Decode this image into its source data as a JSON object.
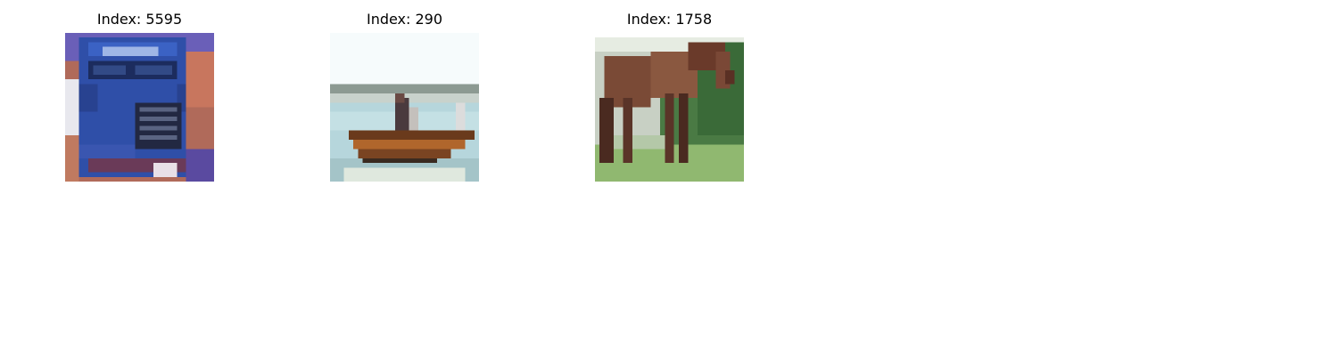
{
  "figure": {
    "panels": [
      {
        "title": "Index: 5595",
        "subject": "truck-thumbnail",
        "dominant_color": "#2f4fa8"
      },
      {
        "title": "Index: 290",
        "subject": "boat-thumbnail",
        "dominant_color": "#9a5a2a"
      },
      {
        "title": "Index: 1758",
        "subject": "horse-thumbnail",
        "dominant_color": "#7a4a36"
      }
    ]
  }
}
